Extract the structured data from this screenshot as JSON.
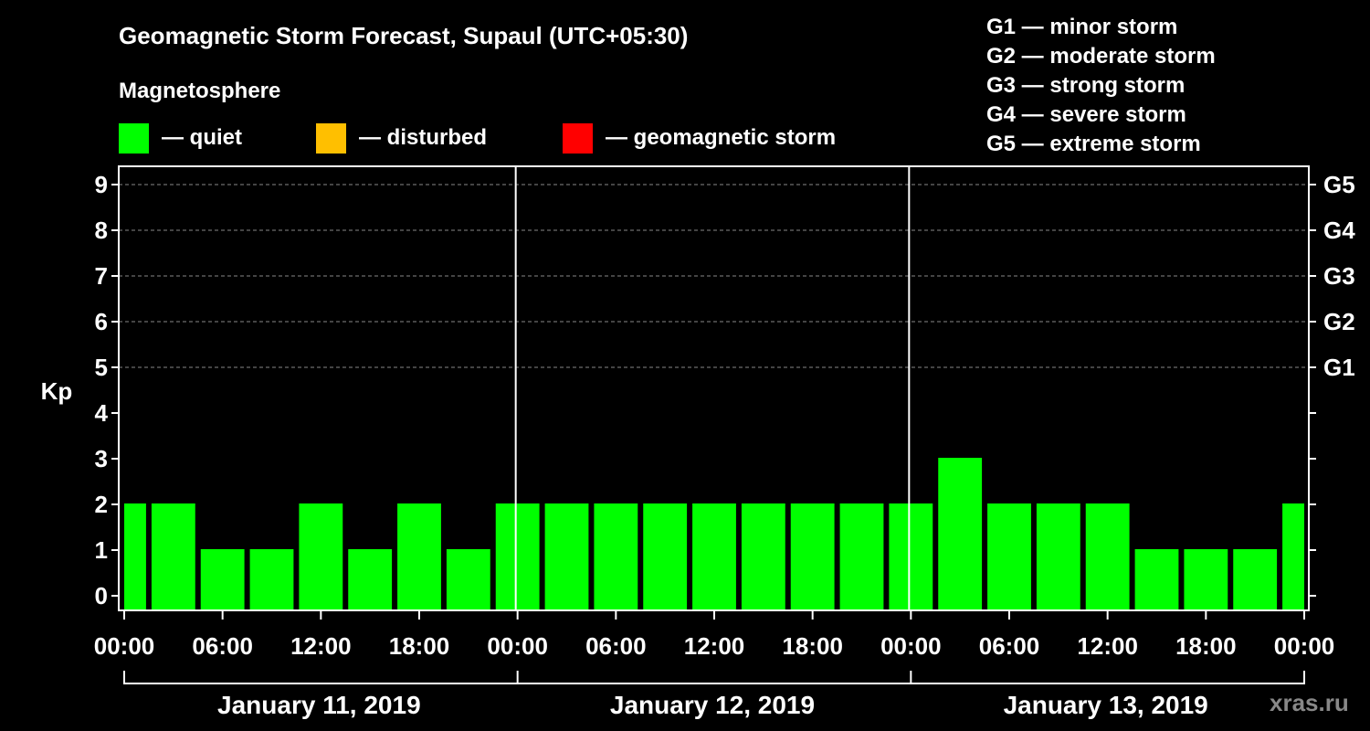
{
  "title": "Geomagnetic Storm Forecast, Supaul (UTC+05:30)",
  "subtitle": "Magnetosphere",
  "legend": [
    {
      "label": "— quiet",
      "color": "#00ff00"
    },
    {
      "label": "— disturbed",
      "color": "#ffbf00"
    },
    {
      "label": "— geomagnetic storm",
      "color": "#ff0000"
    }
  ],
  "g_legend": [
    "G1 — minor storm",
    "G2 — moderate storm",
    "G3 — strong storm",
    "G4 — severe storm",
    "G5 — extreme storm"
  ],
  "credit": "xras.ru",
  "chart_data": {
    "type": "bar",
    "ylabel": "Kp",
    "ylim": [
      0,
      9
    ],
    "y_ticks": [
      "0",
      "1",
      "2",
      "3",
      "4",
      "5",
      "6",
      "7",
      "8",
      "9"
    ],
    "right_axis_labels": [
      {
        "kp": 5,
        "label": "G1"
      },
      {
        "kp": 6,
        "label": "G2"
      },
      {
        "kp": 7,
        "label": "G3"
      },
      {
        "kp": 8,
        "label": "G4"
      },
      {
        "kp": 9,
        "label": "G5"
      }
    ],
    "x_tick_labels": [
      "00:00",
      "06:00",
      "12:00",
      "18:00",
      "00:00",
      "06:00",
      "12:00",
      "18:00",
      "00:00",
      "06:00",
      "12:00",
      "18:00",
      "00:00"
    ],
    "x_range_hours": [
      0,
      72
    ],
    "days": [
      "January 11, 2019",
      "January 12, 2019",
      "January 13, 2019"
    ],
    "bars": [
      {
        "start_hour": 0.0,
        "end_hour": 1.5,
        "kp": 2,
        "status": "quiet"
      },
      {
        "start_hour": 1.5,
        "end_hour": 4.5,
        "kp": 2,
        "status": "quiet"
      },
      {
        "start_hour": 4.5,
        "end_hour": 7.5,
        "kp": 1,
        "status": "quiet"
      },
      {
        "start_hour": 7.5,
        "end_hour": 10.5,
        "kp": 1,
        "status": "quiet"
      },
      {
        "start_hour": 10.5,
        "end_hour": 13.5,
        "kp": 2,
        "status": "quiet"
      },
      {
        "start_hour": 13.5,
        "end_hour": 16.5,
        "kp": 1,
        "status": "quiet"
      },
      {
        "start_hour": 16.5,
        "end_hour": 19.5,
        "kp": 2,
        "status": "quiet"
      },
      {
        "start_hour": 19.5,
        "end_hour": 22.5,
        "kp": 1,
        "status": "quiet"
      },
      {
        "start_hour": 22.5,
        "end_hour": 25.5,
        "kp": 2,
        "status": "quiet"
      },
      {
        "start_hour": 25.5,
        "end_hour": 28.5,
        "kp": 2,
        "status": "quiet"
      },
      {
        "start_hour": 28.5,
        "end_hour": 31.5,
        "kp": 2,
        "status": "quiet"
      },
      {
        "start_hour": 31.5,
        "end_hour": 34.5,
        "kp": 2,
        "status": "quiet"
      },
      {
        "start_hour": 34.5,
        "end_hour": 37.5,
        "kp": 2,
        "status": "quiet"
      },
      {
        "start_hour": 37.5,
        "end_hour": 40.5,
        "kp": 2,
        "status": "quiet"
      },
      {
        "start_hour": 40.5,
        "end_hour": 43.5,
        "kp": 2,
        "status": "quiet"
      },
      {
        "start_hour": 43.5,
        "end_hour": 46.5,
        "kp": 2,
        "status": "quiet"
      },
      {
        "start_hour": 46.5,
        "end_hour": 49.5,
        "kp": 2,
        "status": "quiet"
      },
      {
        "start_hour": 49.5,
        "end_hour": 52.5,
        "kp": 3,
        "status": "quiet"
      },
      {
        "start_hour": 52.5,
        "end_hour": 55.5,
        "kp": 2,
        "status": "quiet"
      },
      {
        "start_hour": 55.5,
        "end_hour": 58.5,
        "kp": 2,
        "status": "quiet"
      },
      {
        "start_hour": 58.5,
        "end_hour": 61.5,
        "kp": 2,
        "status": "quiet"
      },
      {
        "start_hour": 61.5,
        "end_hour": 64.5,
        "kp": 1,
        "status": "quiet"
      },
      {
        "start_hour": 64.5,
        "end_hour": 67.5,
        "kp": 1,
        "status": "quiet"
      },
      {
        "start_hour": 67.5,
        "end_hour": 70.5,
        "kp": 1,
        "status": "quiet"
      },
      {
        "start_hour": 70.5,
        "end_hour": 72.0,
        "kp": 2,
        "status": "quiet"
      }
    ]
  }
}
